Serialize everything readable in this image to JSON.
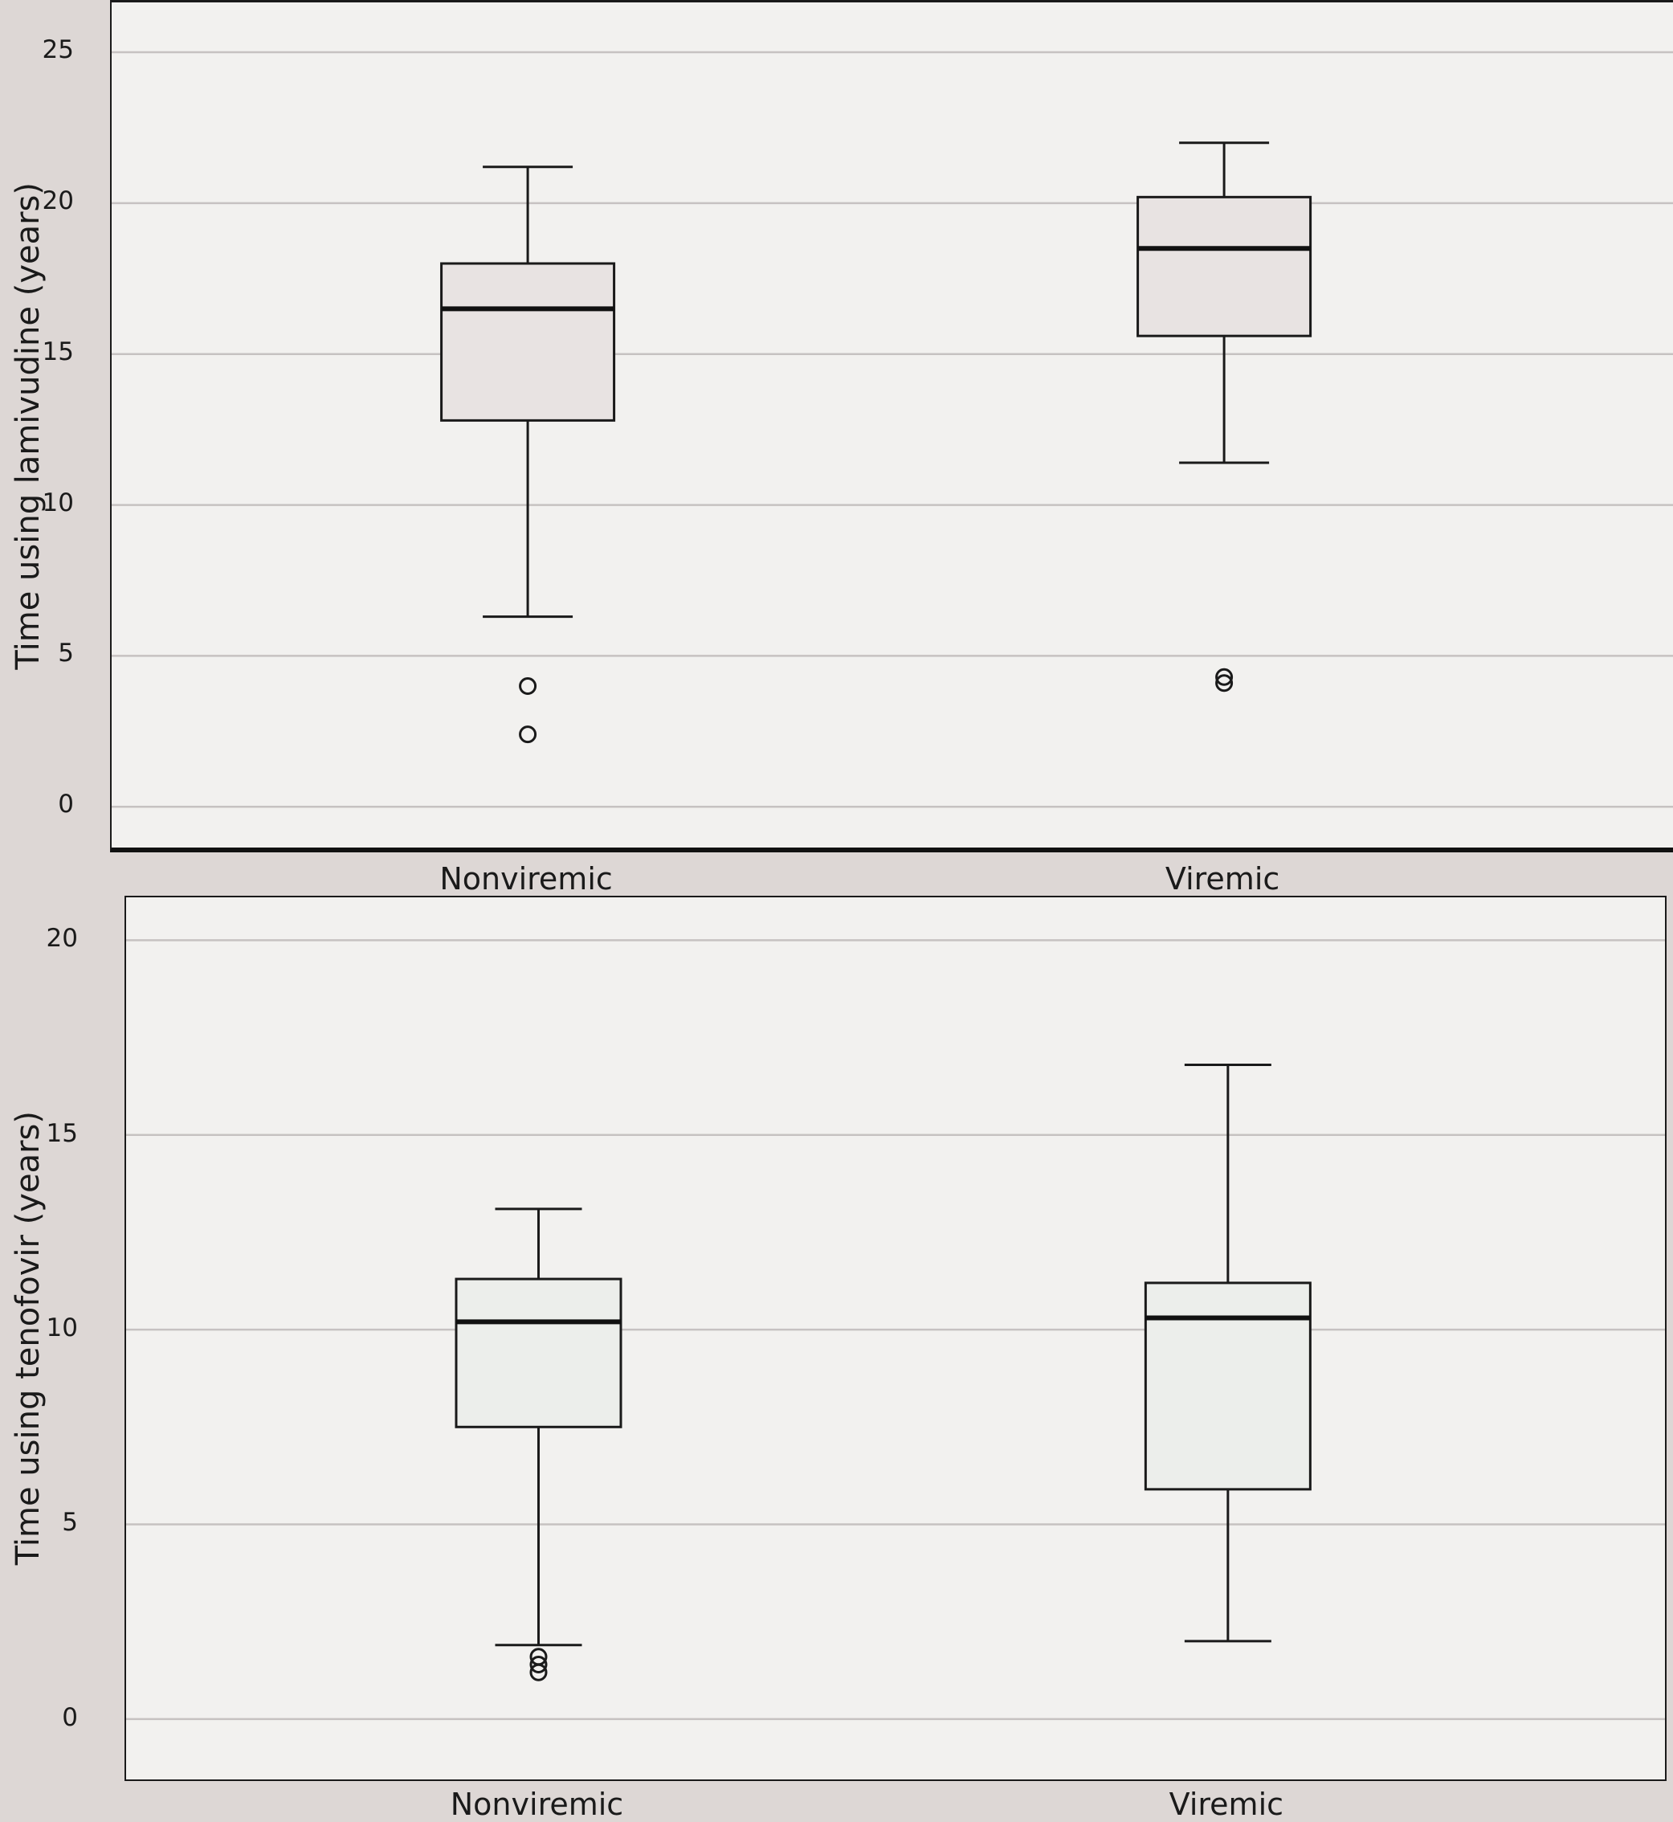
{
  "figure": {
    "description": "Two stacked box plots comparing antiretroviral drug exposure time between nonviremic and viremic groups"
  },
  "chart_data": [
    {
      "type": "box",
      "title": "",
      "ylabel": "Time using lamivudine (years)",
      "xlabel": "",
      "categories": [
        "Nonviremic",
        "Viremic"
      ],
      "ylim": [
        -1.35,
        26.65
      ],
      "yticks": [
        0,
        5,
        10,
        15,
        20,
        25
      ],
      "grid": true,
      "legend": "none",
      "box_fill": "#e8e3e2",
      "plot_bg": "#f2f1ef",
      "grid_color": "#c6c2c1",
      "series": [
        {
          "name": "Nonviremic",
          "whisker_low": 6.3,
          "q1": 12.8,
          "median": 16.5,
          "q3": 18.0,
          "whisker_high": 21.2,
          "outliers": [
            4.0,
            2.4
          ]
        },
        {
          "name": "Viremic",
          "whisker_low": 11.4,
          "q1": 15.6,
          "median": 18.5,
          "q3": 20.2,
          "whisker_high": 22.0,
          "outliers": [
            4.3,
            4.1
          ]
        }
      ]
    },
    {
      "type": "box",
      "title": "",
      "ylabel": "Time using tenofovir (years)",
      "xlabel": "",
      "categories": [
        "Nonviremic",
        "Viremic"
      ],
      "ylim": [
        -1.55,
        21.1
      ],
      "yticks": [
        0,
        5,
        10,
        15,
        20
      ],
      "grid": true,
      "legend": "none",
      "box_fill": "#eceeeb",
      "plot_bg": "#f2f1ef",
      "grid_color": "#c6c2c1",
      "series": [
        {
          "name": "Nonviremic",
          "whisker_low": 1.9,
          "q1": 7.5,
          "median": 10.2,
          "q3": 11.3,
          "whisker_high": 13.1,
          "outliers": [
            1.6,
            1.4,
            1.2
          ]
        },
        {
          "name": "Viremic",
          "whisker_low": 2.0,
          "q1": 5.9,
          "median": 10.3,
          "q3": 11.2,
          "whisker_high": 16.8,
          "outliers": []
        }
      ]
    }
  ]
}
